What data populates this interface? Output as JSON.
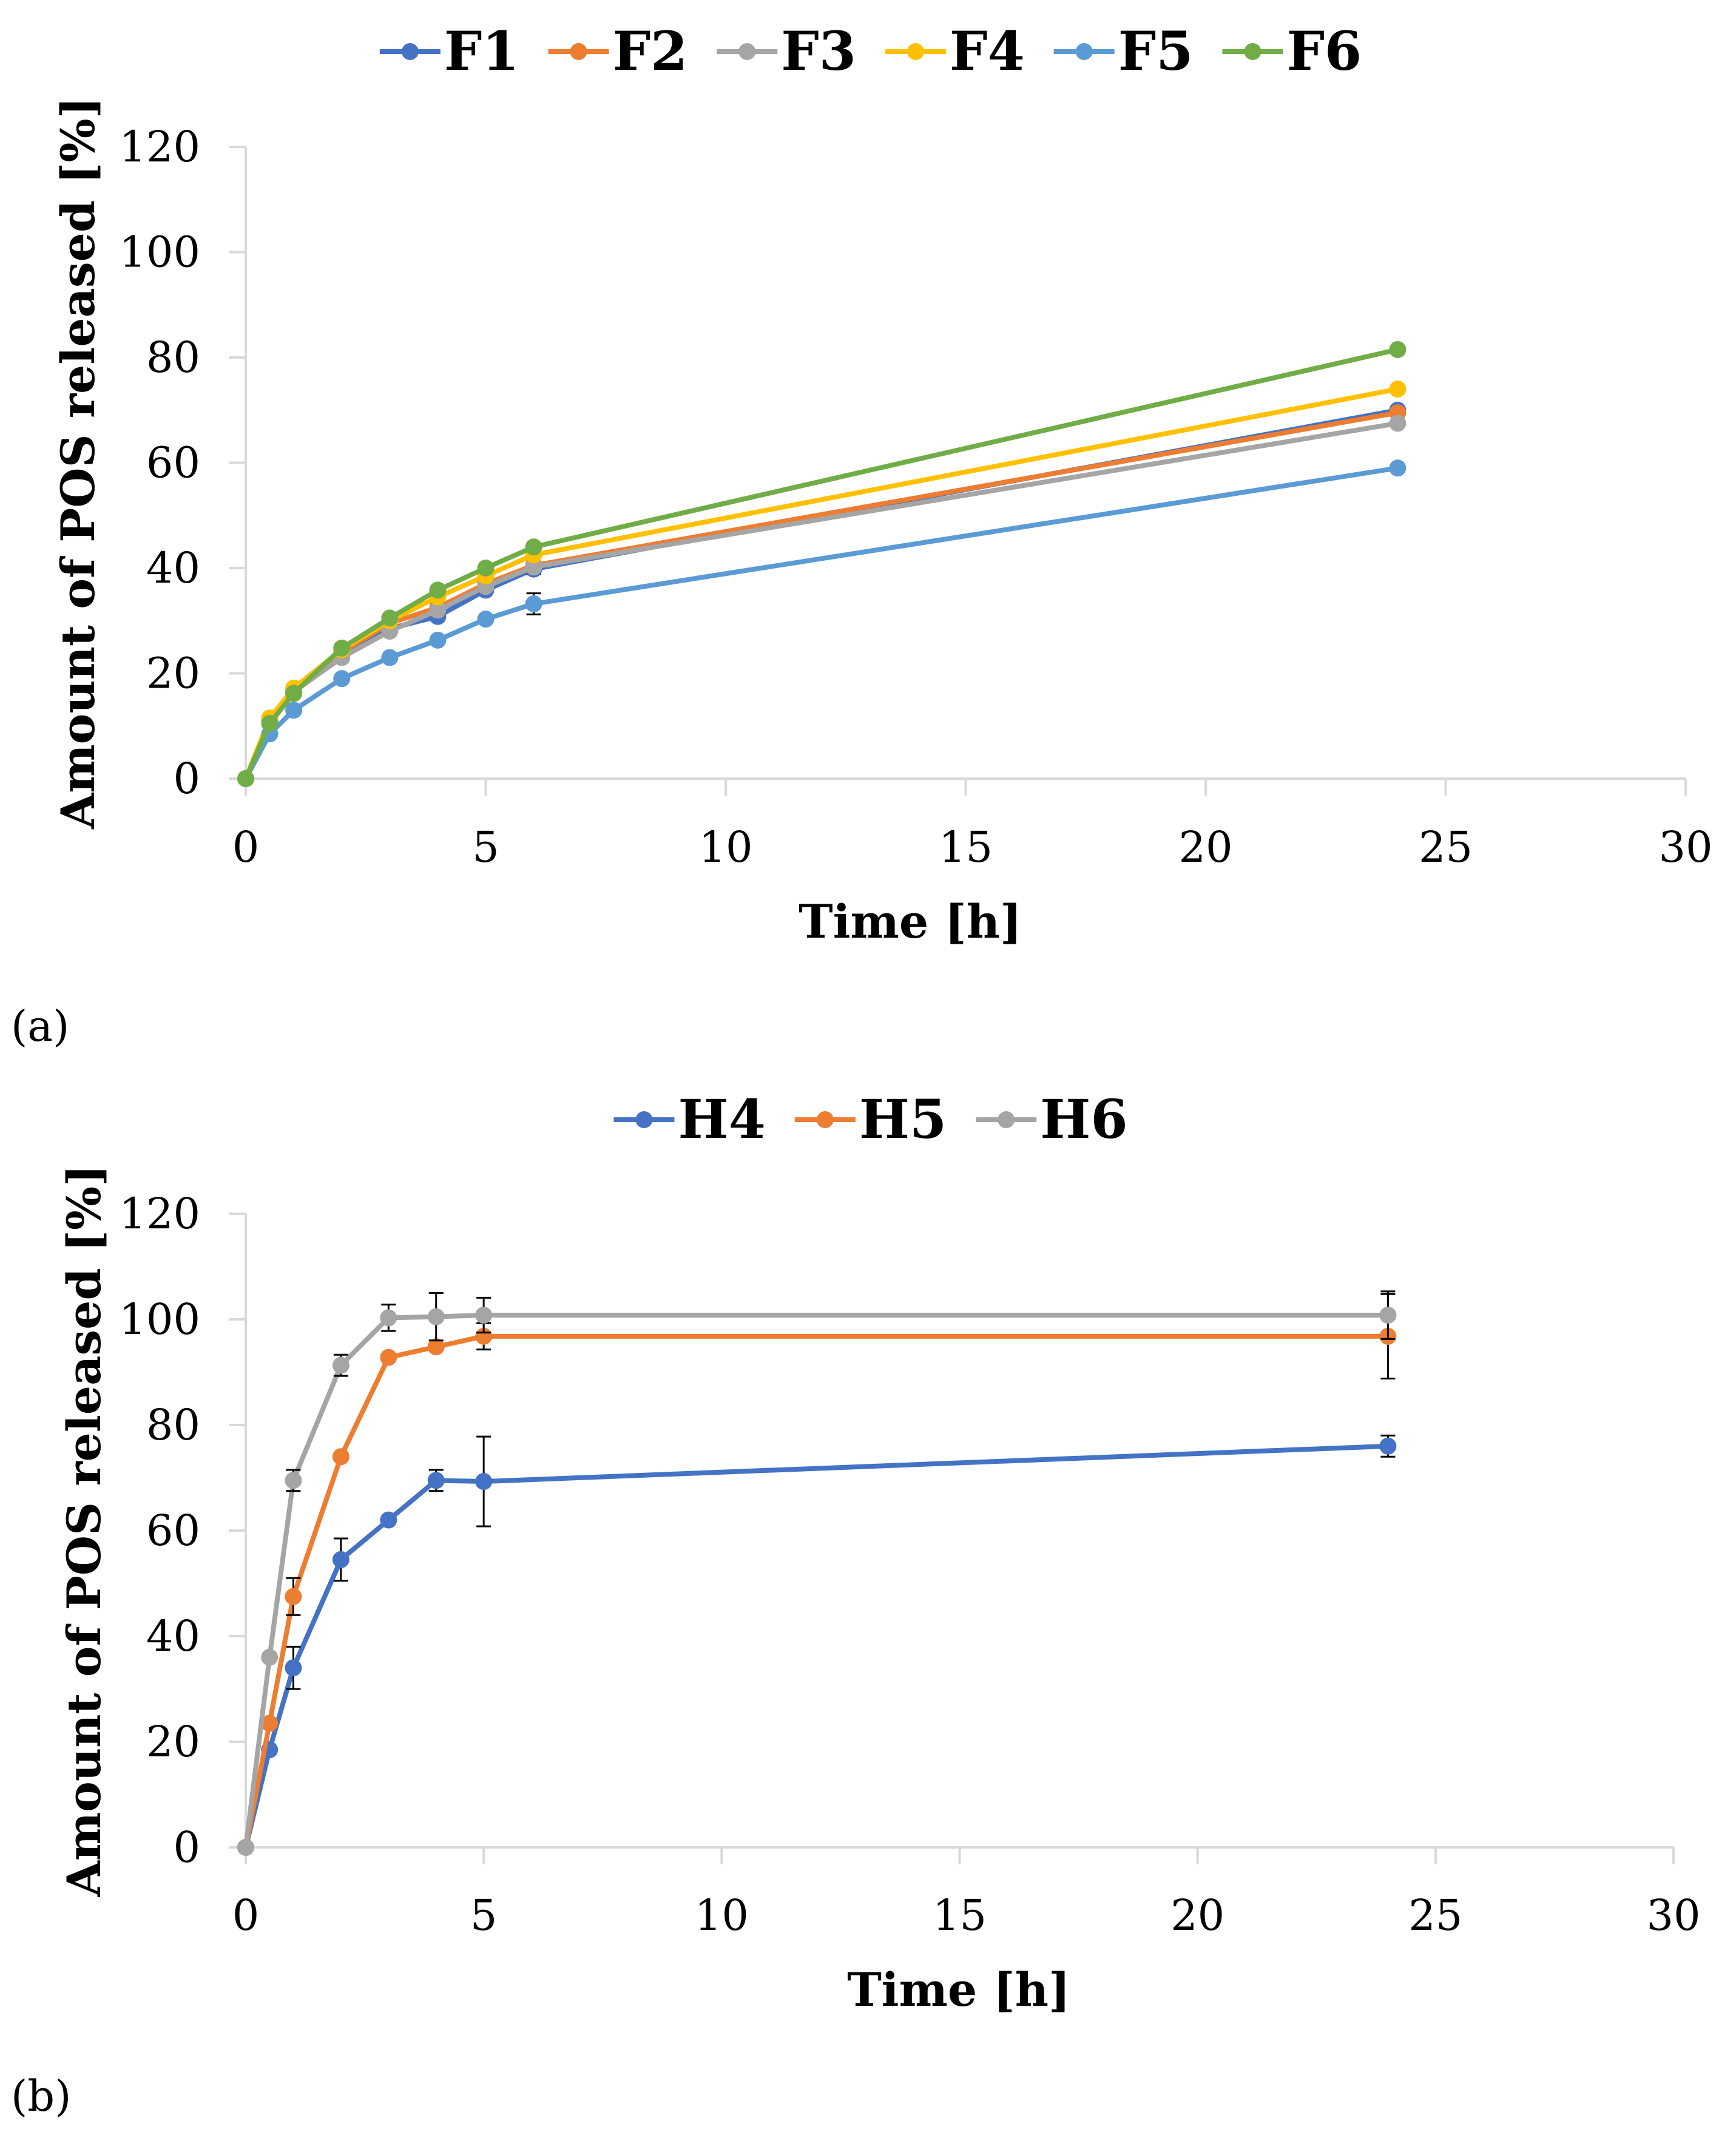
{
  "colors": {
    "blue": "#4472C4",
    "orange": "#ED7D31",
    "gray": "#A5A5A5",
    "yellow": "#FFC000",
    "lightblue": "#5B9BD5",
    "green": "#70AD47",
    "axis": "#D9D9D9",
    "error_bar": "#000000"
  },
  "chart_data": [
    {
      "panel_label": "(a)",
      "type": "line",
      "title": "",
      "xlabel": "Time [h]",
      "ylabel": "Amount of POS released [%]",
      "xlim": [
        0,
        30
      ],
      "ylim": [
        0,
        120
      ],
      "xticks": [
        0,
        5,
        10,
        15,
        20,
        25,
        30
      ],
      "yticks": [
        0,
        20,
        40,
        60,
        80,
        100,
        120
      ],
      "x_tick_labels": [
        "0",
        "5",
        "10",
        "15",
        "20",
        "25",
        "30"
      ],
      "y_tick_labels": [
        "0",
        "20",
        "40",
        "60",
        "80",
        "100",
        "120"
      ],
      "grid": false,
      "legend_position": "top",
      "x": [
        0,
        0.5,
        1,
        2,
        3,
        4,
        5,
        6,
        24
      ],
      "series": [
        {
          "name": "F1",
          "color_key": "blue",
          "values": [
            0,
            11,
            16.5,
            23.5,
            28.5,
            30.8,
            35.8,
            39.8,
            70
          ],
          "errors": [
            0,
            0,
            0,
            0,
            0,
            0.8,
            0,
            1.0,
            0
          ]
        },
        {
          "name": "F2",
          "color_key": "orange",
          "values": [
            0,
            11,
            16.8,
            24,
            29.5,
            32.5,
            37,
            40.5,
            69.5
          ],
          "errors": [
            0,
            0,
            0,
            0,
            0,
            0,
            0,
            0,
            0
          ]
        },
        {
          "name": "F3",
          "color_key": "gray",
          "values": [
            0,
            11.5,
            16.5,
            23,
            28,
            32,
            36.5,
            40.2,
            67.5
          ],
          "errors": [
            0,
            0,
            0,
            0,
            0,
            0,
            0,
            0,
            0
          ]
        },
        {
          "name": "F4",
          "color_key": "yellow",
          "values": [
            0,
            11.5,
            17.2,
            24.5,
            30,
            34.5,
            38.5,
            42.5,
            74
          ],
          "errors": [
            0,
            0,
            0,
            0,
            0,
            0,
            0,
            0,
            0
          ]
        },
        {
          "name": "F5",
          "color_key": "lightblue",
          "values": [
            0,
            8.5,
            13,
            19,
            23,
            26.3,
            30.3,
            33.2,
            59
          ],
          "errors": [
            0,
            0,
            0,
            0,
            0,
            0,
            0,
            2.0,
            0
          ]
        },
        {
          "name": "F6",
          "color_key": "green",
          "values": [
            0,
            10.5,
            16.2,
            24.8,
            30.5,
            35.8,
            40,
            44,
            81.5
          ],
          "errors": [
            0,
            0,
            0,
            0,
            0,
            0,
            0,
            0,
            0
          ]
        }
      ]
    },
    {
      "panel_label": "(b)",
      "type": "line",
      "title": "",
      "xlabel": "Time [h]",
      "ylabel": "Amount of POS released  [%]",
      "xlim": [
        0,
        30
      ],
      "ylim": [
        0,
        120
      ],
      "xticks": [
        0,
        5,
        10,
        15,
        20,
        25,
        30
      ],
      "yticks": [
        0,
        20,
        40,
        60,
        80,
        100,
        120
      ],
      "x_tick_labels": [
        "0",
        "5",
        "10",
        "15",
        "20",
        "25",
        "30"
      ],
      "y_tick_labels": [
        "0",
        "20",
        "40",
        "60",
        "80",
        "100",
        "120"
      ],
      "grid": false,
      "legend_position": "top",
      "x": [
        0,
        0.5,
        1,
        2,
        3,
        4,
        5,
        24
      ],
      "series": [
        {
          "name": "H4",
          "color_key": "blue",
          "values": [
            0,
            18.5,
            34,
            54.5,
            62,
            69.5,
            69.3,
            76
          ],
          "errors": [
            0,
            0,
            4,
            4,
            0,
            2,
            8.5,
            2
          ]
        },
        {
          "name": "H5",
          "color_key": "orange",
          "values": [
            0,
            23.5,
            47.5,
            74,
            92.8,
            94.8,
            96.8,
            96.8
          ],
          "errors": [
            0,
            0,
            3.5,
            0,
            0,
            0,
            2.5,
            8
          ]
        },
        {
          "name": "H6",
          "color_key": "gray",
          "values": [
            0,
            36,
            69.5,
            91.3,
            100.3,
            100.5,
            100.8,
            100.8
          ],
          "errors": [
            0,
            0,
            2,
            2,
            2.5,
            4.5,
            3.3,
            4.5
          ]
        }
      ]
    }
  ]
}
